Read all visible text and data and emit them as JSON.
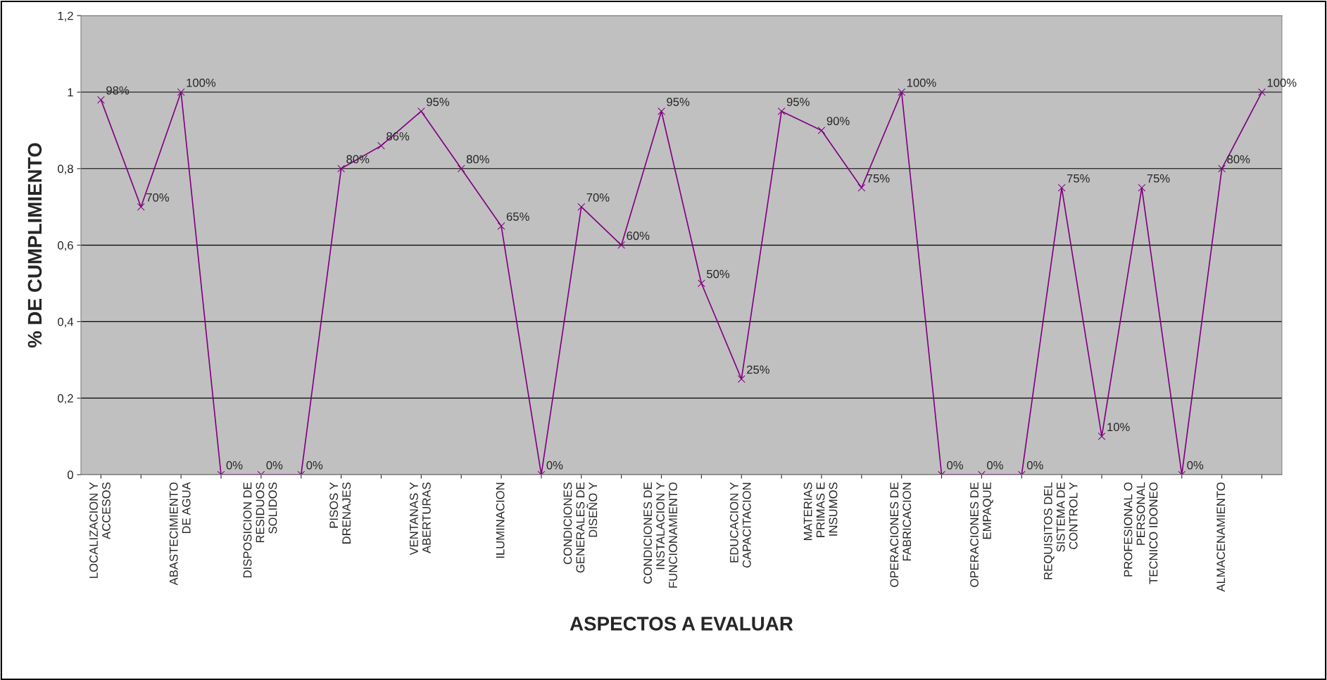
{
  "chart_data": {
    "type": "line",
    "xlabel": "ASPECTOS A EVALUAR",
    "ylabel": "% DE CUMPLIMIENTO",
    "categories": [
      "LOCALIZACION Y ACCESOS",
      null,
      "ABASTECIMIENTO DE AGUA",
      null,
      "DISPOSICION DE RESIDUOS SOLIDOS",
      null,
      "PISOS Y DRENAJES",
      null,
      "VENTANAS Y ABERTURAS",
      null,
      "ILUMINACION",
      null,
      "CONDICIONES GENERALES DE DISEÑO Y",
      null,
      "CONDICIONES DE INSTALACION Y FUNCIONAMIENTO",
      null,
      "EDUCACION Y CAPACITACION",
      null,
      "MATERIAS PRIMAS E INSUMOS",
      null,
      "OPERACIONES DE FABRICACION",
      null,
      "OPERACIONES DE EMPAQUE",
      null,
      "REQUISITOS DEL SISTEMA DE CONTROL Y",
      null,
      "PROFESIONAL O PERSONAL TECNICO IDONEO",
      null,
      "ALMACENAMIENTO",
      null
    ],
    "series": [
      {
        "color": "#800080",
        "values": [
          0.98,
          0.7,
          1.0,
          0,
          0,
          0,
          0.8,
          0.86,
          0.95,
          0.8,
          0.65,
          0,
          0.7,
          0.6,
          0.95,
          0.5,
          0.25,
          0.95,
          0.9,
          0.75,
          1.0,
          0,
          0,
          0,
          0.75,
          0.1,
          0.75,
          0,
          0.8,
          1.0
        ],
        "value_labels": [
          "98%",
          "70%",
          "100%",
          "0%",
          "0%",
          "0%",
          "80%",
          "86%",
          "95%",
          "80%",
          "65%",
          "0%",
          "70%",
          "60%",
          "95%",
          "50%",
          "25%",
          "95%",
          "90%",
          "75%",
          "100%",
          "0%",
          "0%",
          "0%",
          "75%",
          "10%",
          "75%",
          "0%",
          "80%",
          "100%"
        ]
      }
    ],
    "ylim": [
      0,
      1.2
    ],
    "yticks": [
      0,
      {
        "value": 0.2,
        "label": "0,2"
      },
      {
        "value": 0.4,
        "label": "0,4"
      },
      {
        "value": 0.6,
        "label": "0,6"
      },
      {
        "value": 0.8,
        "label": "0,8"
      },
      1,
      {
        "value": 1.2,
        "label": "1,2"
      }
    ],
    "grid": "y",
    "marker": "cross",
    "line_style": "solid",
    "legend": false
  }
}
